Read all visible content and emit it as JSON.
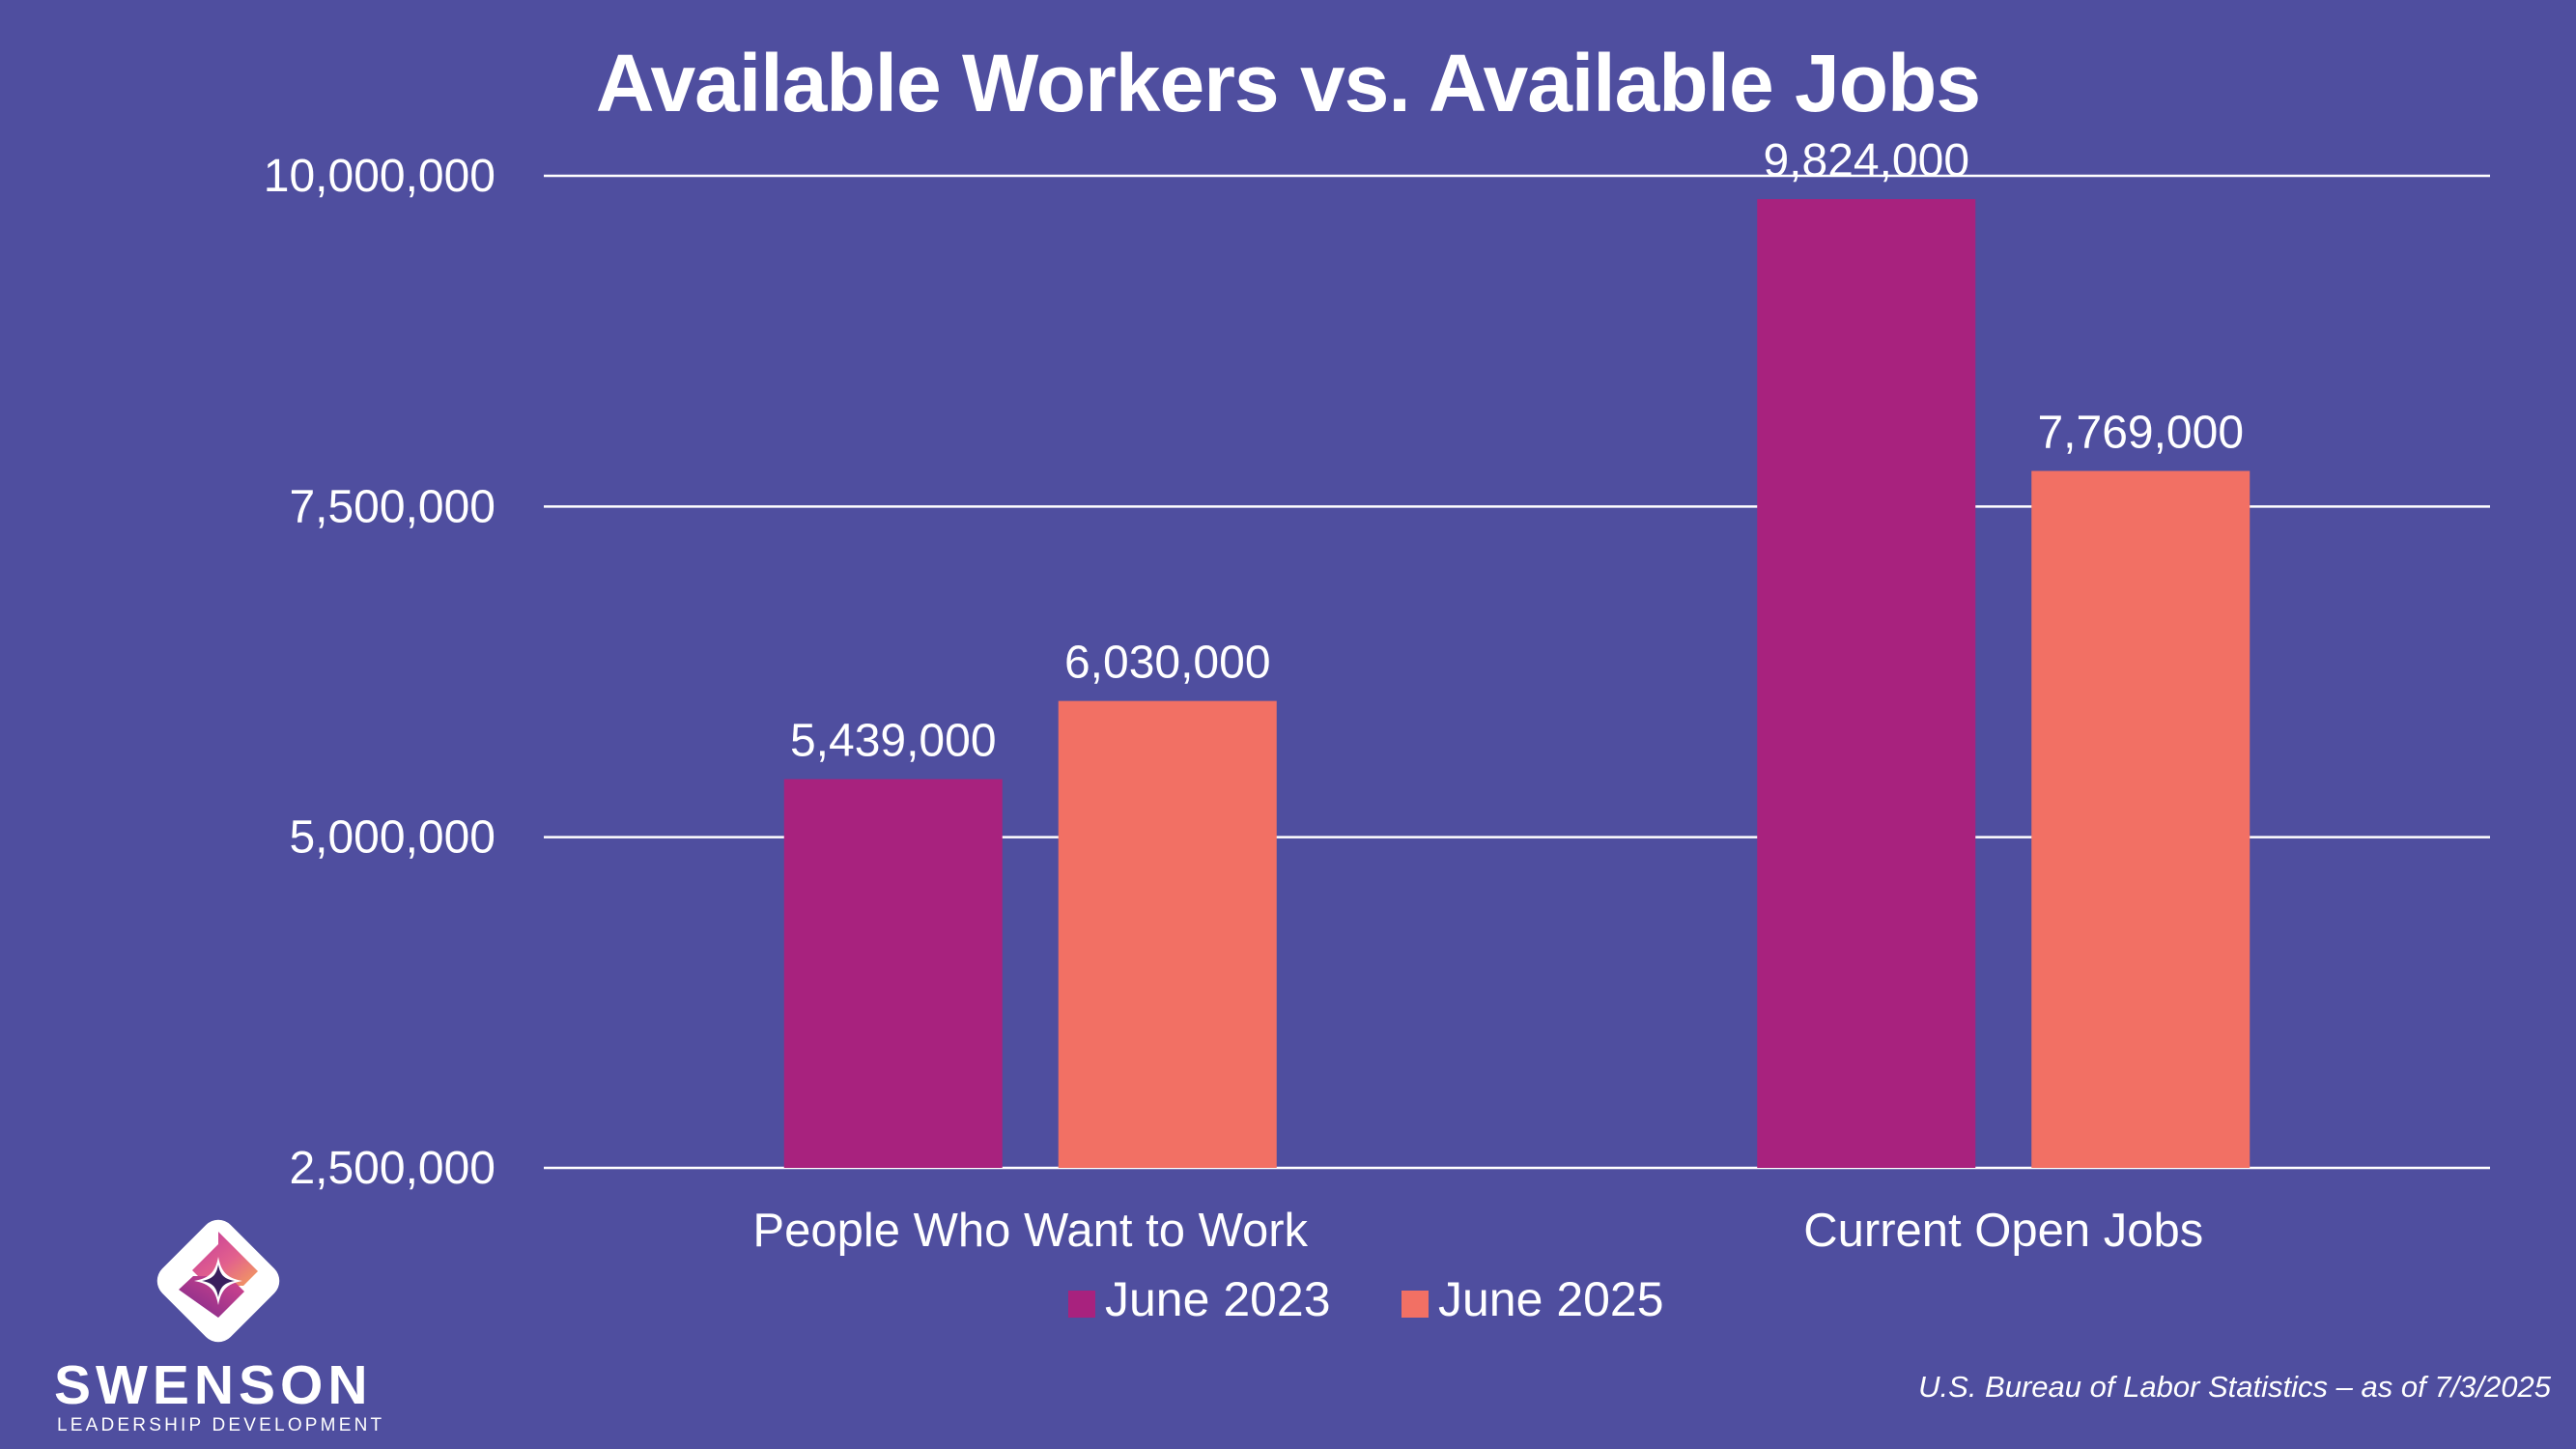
{
  "slide": {
    "source": "U.S. Bureau of Labor Statistics – as of 7/3/2025"
  },
  "logo": {
    "name": "SWENSON",
    "tagline": "LEADERSHIP DEVELOPMENT"
  },
  "colors": {
    "background": "#4f4e9f",
    "series_2023": "#a8227e",
    "series_2025": "#f27064",
    "text": "#ffffff"
  },
  "chart_data": {
    "type": "bar",
    "title": "Available Workers vs. Available Jobs",
    "xlabel": "",
    "ylabel": "",
    "categories": [
      "People Who Want to Work",
      "Current Open Jobs"
    ],
    "series": [
      {
        "name": "June 2023",
        "values": [
          5439000,
          9824000
        ],
        "labels": [
          "5,439,000",
          "9,824,000"
        ],
        "color": "#a8227e"
      },
      {
        "name": "June 2025",
        "values": [
          6030000,
          7769000
        ],
        "labels": [
          "6,030,000",
          "7,769,000"
        ],
        "color": "#f27064"
      }
    ],
    "ylim": [
      2500000,
      10000000
    ],
    "yticks": [
      2500000,
      5000000,
      7500000,
      10000000
    ],
    "ytick_labels": [
      "2,500,000",
      "5,000,000",
      "7,500,000",
      "10,000,000"
    ],
    "grid": true,
    "legend": "bottom"
  }
}
